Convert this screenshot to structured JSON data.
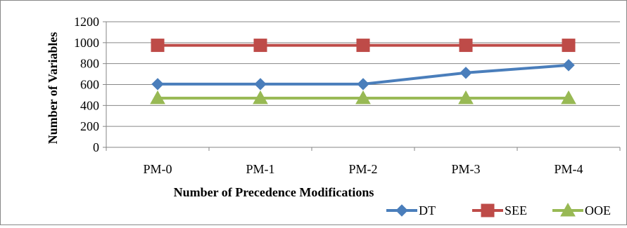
{
  "chart_data": {
    "type": "line",
    "categories": [
      "PM-0",
      "PM-1",
      "PM-2",
      "PM-3",
      "PM-4"
    ],
    "series": [
      {
        "name": "DT",
        "values": [
          604,
          604,
          604,
          712,
          785
        ],
        "color": "#4a7ebb",
        "marker": "diamond"
      },
      {
        "name": "SEE",
        "values": [
          975,
          975,
          975,
          975,
          975
        ],
        "color": "#be4b48",
        "marker": "square"
      },
      {
        "name": "OOE",
        "values": [
          470,
          470,
          470,
          470,
          470
        ],
        "color": "#98b954",
        "marker": "triangle"
      }
    ],
    "title": "",
    "xlabel": "Number of Precedence Modifications",
    "ylabel": "Number of Variables",
    "ylim": [
      0,
      1200
    ],
    "yticks": [
      0,
      200,
      400,
      600,
      800,
      1000,
      1200
    ],
    "grid": true,
    "legend_position": "bottom-right"
  }
}
